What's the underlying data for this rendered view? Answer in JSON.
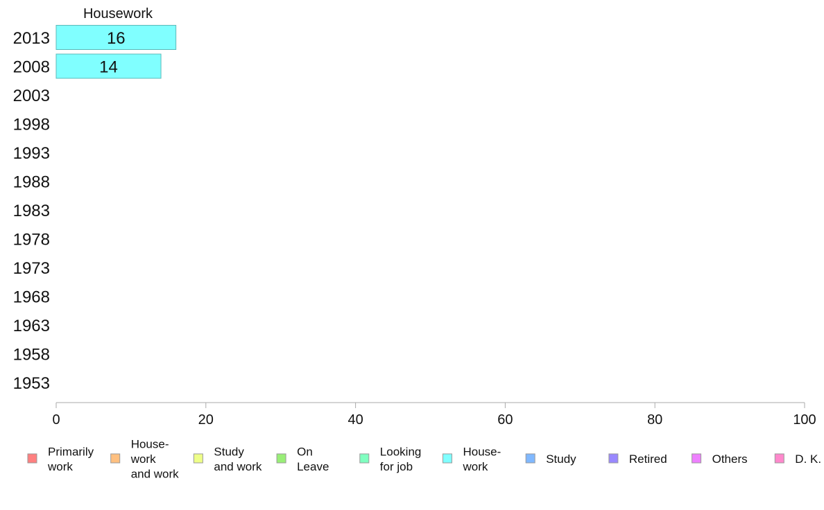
{
  "chart_data": {
    "type": "bar",
    "orientation": "horizontal",
    "title": "Housework",
    "categories": [
      "2013",
      "2008",
      "2003",
      "1998",
      "1993",
      "1988",
      "1983",
      "1978",
      "1973",
      "1968",
      "1963",
      "1958",
      "1953"
    ],
    "series": [
      {
        "name": "House-\nwork",
        "color": "#80ffff",
        "values": [
          16,
          14,
          null,
          null,
          null,
          null,
          null,
          null,
          null,
          null,
          null,
          null,
          null
        ]
      }
    ],
    "xlim": [
      0,
      100
    ],
    "xticks": [
      0,
      20,
      40,
      60,
      80,
      100
    ],
    "grid": false,
    "legend": [
      {
        "label": "Primarily\nwork",
        "color": "#ff8080"
      },
      {
        "label": "House-\nwork\nand work",
        "color": "#ffc080"
      },
      {
        "label": "Study\nand work",
        "color": "#eeff88"
      },
      {
        "label": "On\nLeave",
        "color": "#99ee77"
      },
      {
        "label": "Looking\nfor job",
        "color": "#80ffc0"
      },
      {
        "label": "House-\nwork",
        "color": "#80ffff"
      },
      {
        "label": "Study",
        "color": "#80b8ff"
      },
      {
        "label": "Retired",
        "color": "#9988ff"
      },
      {
        "label": "Others",
        "color": "#ee80ff"
      },
      {
        "label": "D. K.",
        "color": "#ff88cc"
      }
    ],
    "legend_position": "bottom"
  }
}
